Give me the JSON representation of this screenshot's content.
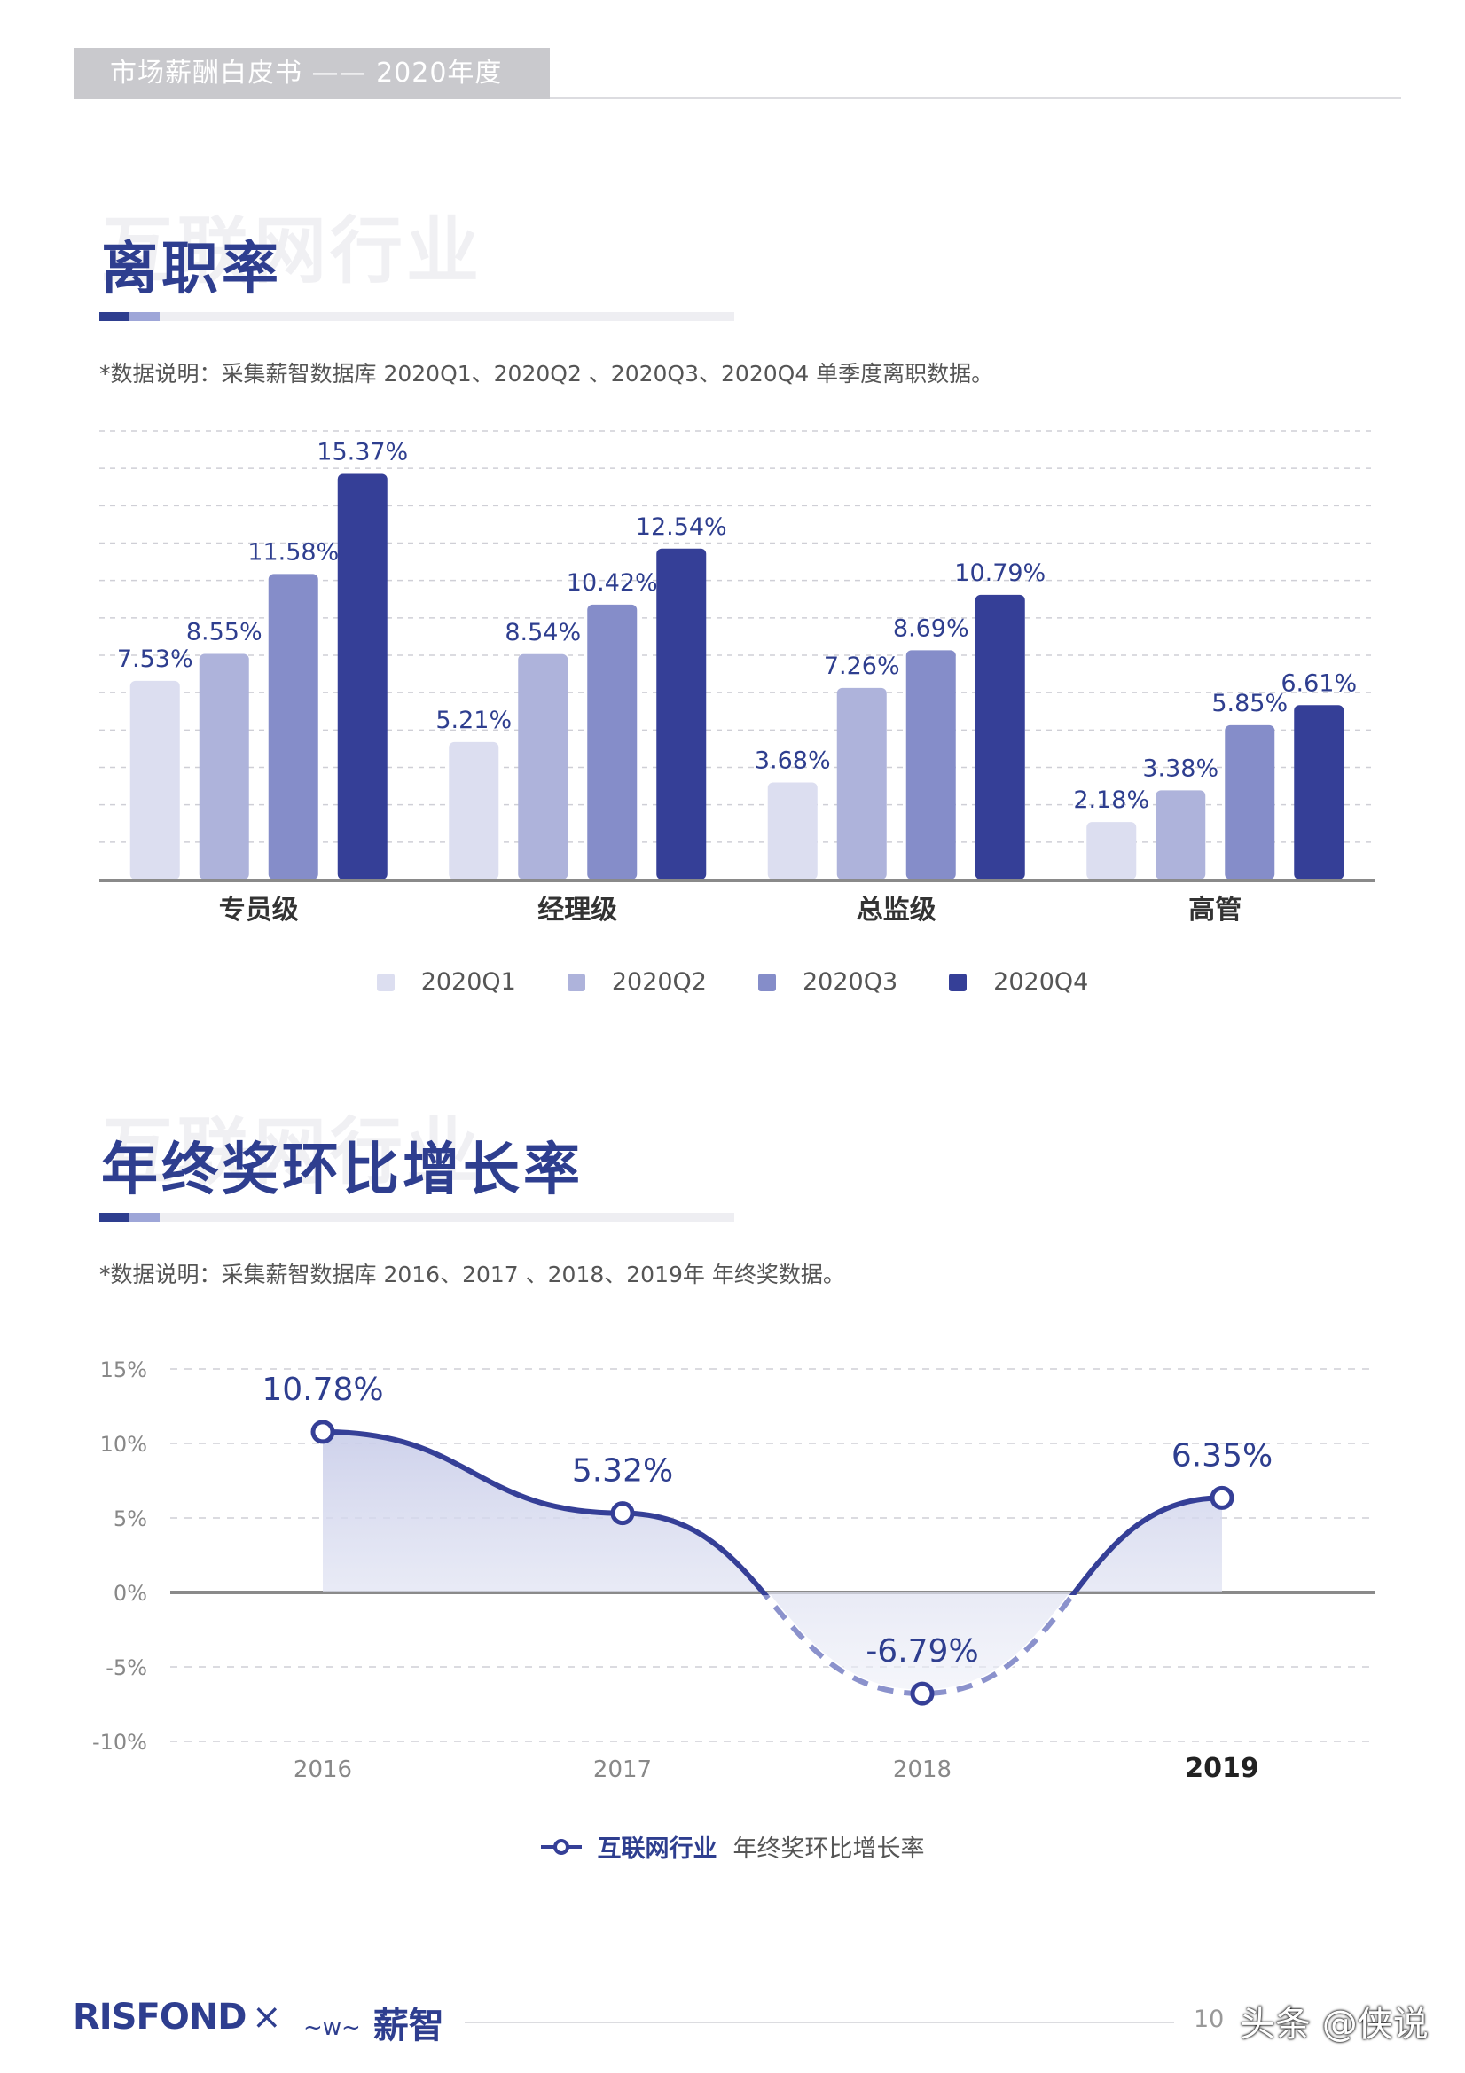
{
  "header": {
    "title": "市场薪酬白皮书 —— 2020年度"
  },
  "section1": {
    "ghost": "互联网行业",
    "title": "离职率",
    "note": "*数据说明：采集薪智数据库 2020Q1、2020Q2 、2020Q3、2020Q4 单季度离职数据。"
  },
  "section2": {
    "ghost": "互联网行业",
    "title": "年终奖环比增长率",
    "note": "*数据说明：采集薪智数据库 2016、2017 、2018、2019年 年终奖数据。"
  },
  "chart_data": [
    {
      "type": "bar",
      "categories": [
        "专员级",
        "经理级",
        "总监级",
        "高管"
      ],
      "series": [
        {
          "name": "2020Q1",
          "values": [
            7.53,
            5.21,
            3.68,
            2.18
          ],
          "labels": [
            "7.53%",
            "5.21%",
            "3.68%",
            "2.18%"
          ],
          "color": "#dcdef0"
        },
        {
          "name": "2020Q2",
          "values": [
            8.55,
            8.54,
            7.26,
            3.38
          ],
          "labels": [
            "8.55%",
            "8.54%",
            "7.26%",
            "3.38%"
          ],
          "color": "#aeb3db"
        },
        {
          "name": "2020Q3",
          "values": [
            11.58,
            10.42,
            8.69,
            5.85
          ],
          "labels": [
            "11.58%",
            "10.42%",
            "8.69%",
            "5.85%"
          ],
          "color": "#858dc9"
        },
        {
          "name": "2020Q4",
          "values": [
            15.37,
            12.54,
            10.79,
            6.61
          ],
          "labels": [
            "15.37%",
            "12.54%",
            "10.79%",
            "6.61%"
          ],
          "color": "#353f97"
        }
      ],
      "ylim": [
        0,
        17
      ],
      "grid": true,
      "legend": "bottom"
    },
    {
      "type": "area",
      "x": [
        "2016",
        "2017",
        "2018",
        "2019"
      ],
      "series": [
        {
          "name": "互联网行业 年终奖环比增长率",
          "name_strong": "互联网行业",
          "name_rest": "年终奖环比增长率",
          "values": [
            10.78,
            5.32,
            -6.79,
            6.35
          ],
          "labels": [
            "10.78%",
            "5.32%",
            "-6.79%",
            "6.35%"
          ],
          "color": "#353f97"
        }
      ],
      "yticks": [
        "15%",
        "10%",
        "5%",
        "0%",
        "-5%",
        "-10%"
      ],
      "ytick_values": [
        15,
        10,
        5,
        0,
        -5,
        -10
      ],
      "ylim": [
        -10,
        15
      ],
      "grid": true,
      "legend": "bottom"
    }
  ],
  "footer": {
    "logo_left": "RISFOND",
    "separator": "×",
    "logo_right": "薪智",
    "logo_right_mark": "~w~",
    "page_number": "10",
    "watermark": "头条 @侠说"
  }
}
